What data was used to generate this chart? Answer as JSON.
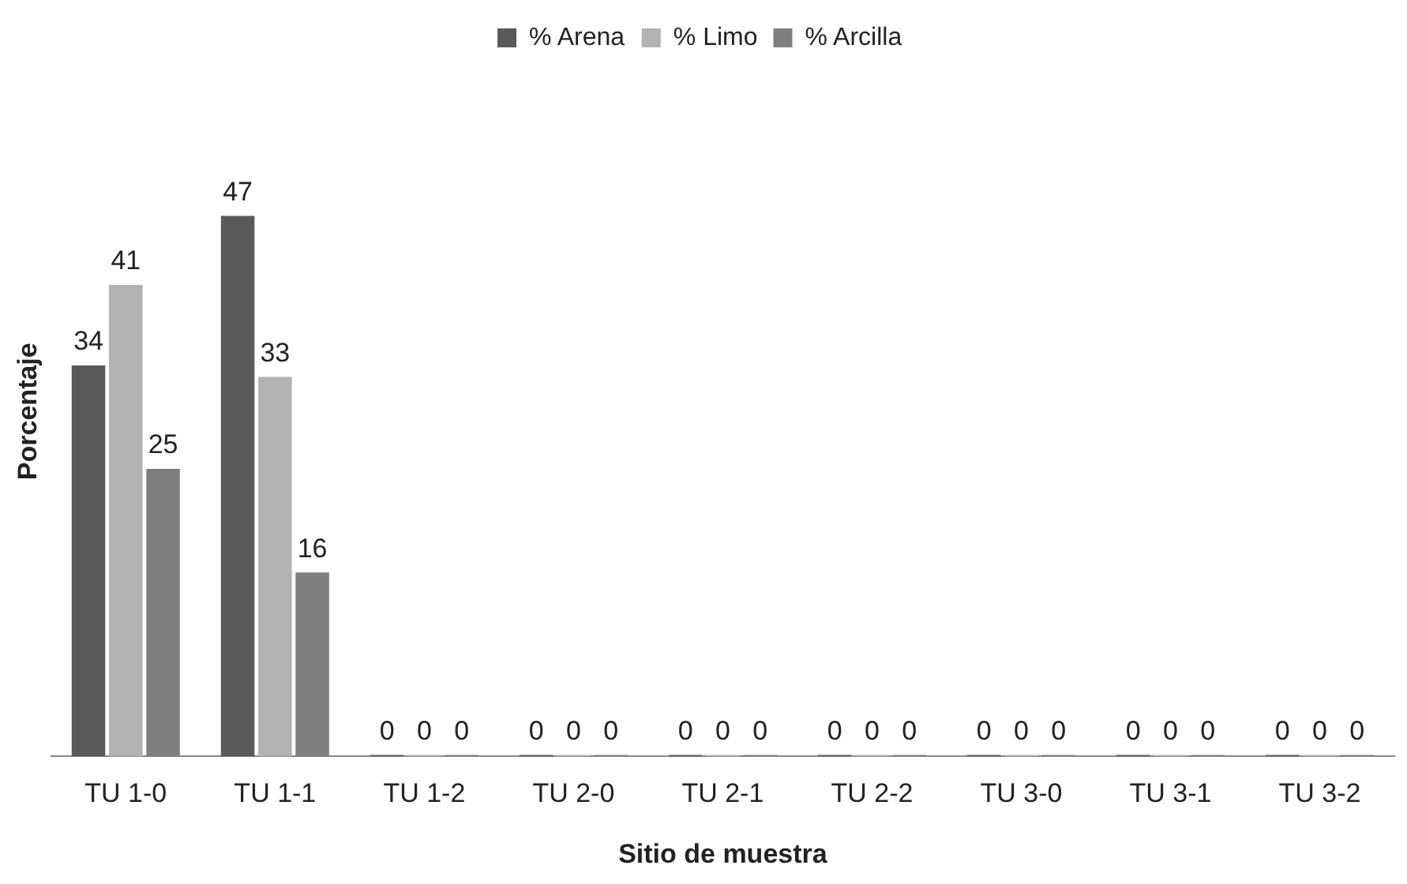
{
  "chart_data": {
    "type": "bar",
    "xlabel": "Sitio de muestra",
    "ylabel": "Porcentaje",
    "categories": [
      "TU 1-0",
      "TU 1-1",
      "TU 1-2",
      "TU 2-0",
      "TU 2-1",
      "TU 2-2",
      "TU 3-0",
      "TU 3-1",
      "TU 3-2"
    ],
    "series": [
      {
        "name": "% Arena",
        "color": "#595959",
        "values": [
          34,
          47,
          0,
          0,
          0,
          0,
          0,
          0,
          0
        ]
      },
      {
        "name": "% Limo",
        "color": "#b2b2b2",
        "values": [
          41,
          33,
          0,
          0,
          0,
          0,
          0,
          0,
          0
        ]
      },
      {
        "name": "% Arcilla",
        "color": "#7f7f7f",
        "values": [
          25,
          16,
          0,
          0,
          0,
          0,
          0,
          0,
          0
        ]
      }
    ],
    "data_labels": true,
    "legend": "top",
    "grid": false,
    "tick_labels": "x"
  }
}
